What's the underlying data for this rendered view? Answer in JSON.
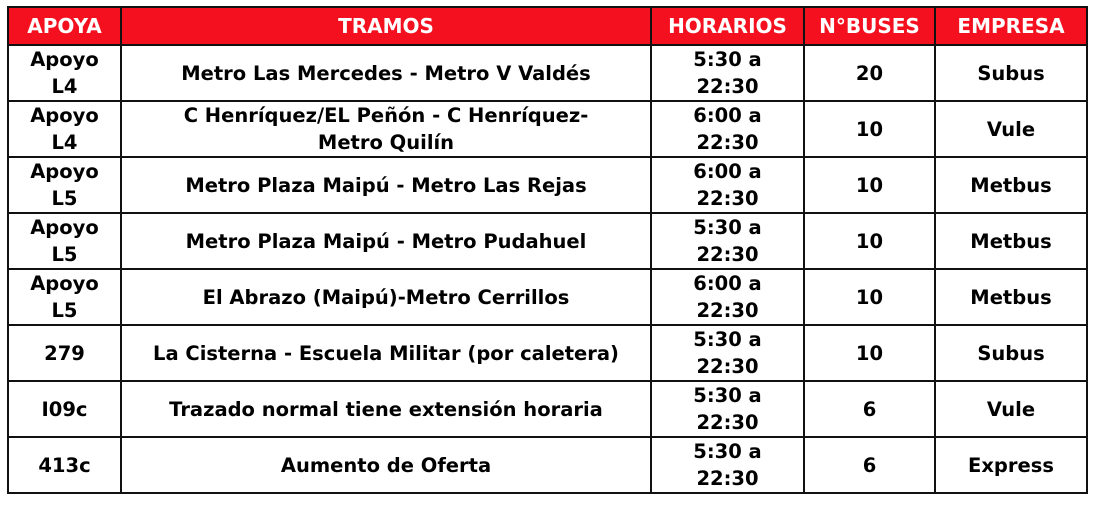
{
  "header": {
    "color": "#f5101f",
    "columns": [
      "APOYA",
      "TRAMOS",
      "HORARIOS",
      "N°BUSES",
      "EMPRESA"
    ]
  },
  "rows": [
    {
      "apoya": "Apoyo L4",
      "tramo": "Metro Las Mercedes - Metro V Valdés",
      "horario": "5:30 a 22:30",
      "buses": "20",
      "empresa": "Subus"
    },
    {
      "apoya": "Apoyo L4",
      "tramo": "C Henríquez/EL Peñón - C Henríquez-Metro Quilín",
      "horario": "6:00 a 22:30",
      "buses": "10",
      "empresa": "Vule"
    },
    {
      "apoya": "Apoyo L5",
      "tramo": "Metro Plaza Maipú - Metro Las Rejas",
      "horario": "6:00 a 22:30",
      "buses": "10",
      "empresa": "Metbus"
    },
    {
      "apoya": "Apoyo L5",
      "tramo": "Metro Plaza Maipú - Metro Pudahuel",
      "horario": "5:30 a 22:30",
      "buses": "10",
      "empresa": "Metbus"
    },
    {
      "apoya": "Apoyo L5",
      "tramo": "El Abrazo (Maipú)-Metro Cerrillos",
      "horario": "6:00 a 22:30",
      "buses": "10",
      "empresa": "Metbus"
    },
    {
      "apoya": "279",
      "tramo": "La Cisterna - Escuela Militar (por caletera)",
      "horario": "5:30 a 22:30",
      "buses": "10",
      "empresa": "Subus"
    },
    {
      "apoya": "I09c",
      "tramo": "Trazado normal tiene extensión horaria",
      "horario": "5:30 a 22:30",
      "buses": "6",
      "empresa": "Vule"
    },
    {
      "apoya": "413c",
      "tramo": "Aumento de Oferta",
      "horario": "5:30 a 22:30",
      "buses": "6",
      "empresa": "Express"
    }
  ]
}
